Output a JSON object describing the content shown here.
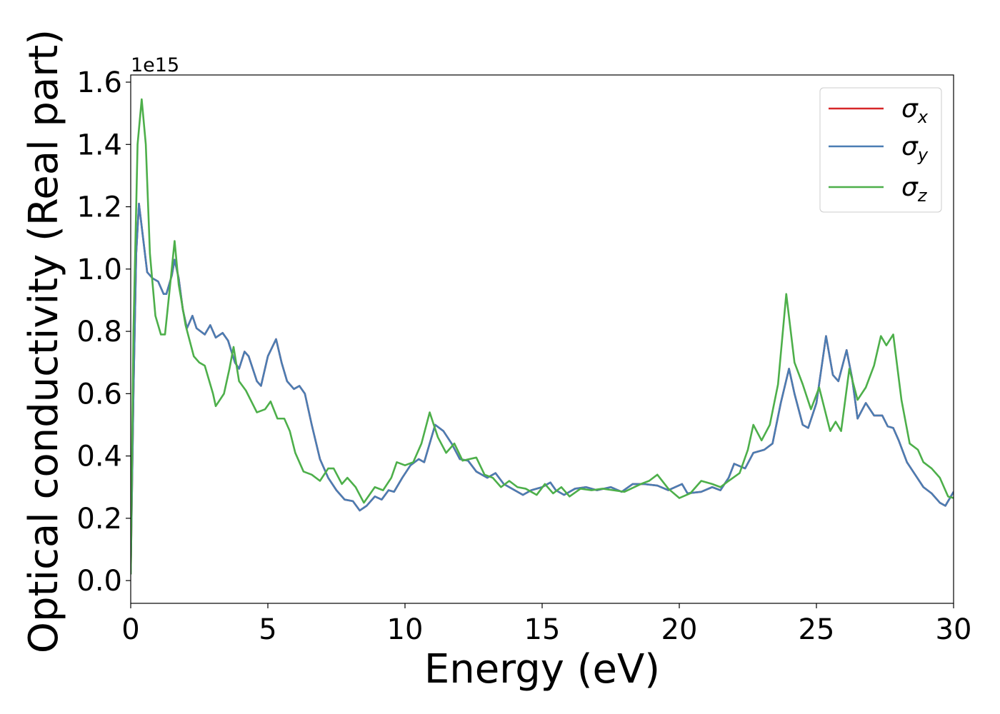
{
  "chart_data": {
    "type": "line",
    "xlabel": "Energy (eV)",
    "ylabel": "Optical conductivity (Real part)",
    "y_offset_label": "1e15",
    "xlim": [
      0,
      30
    ],
    "ylim": [
      -0.073,
      1.623
    ],
    "xticks": [
      0,
      5,
      10,
      15,
      20,
      25,
      30
    ],
    "yticks": [
      {
        "value": 0,
        "label": "0.0"
      },
      0.2,
      0.4,
      0.6,
      0.8,
      {
        "value": 1,
        "label": "1.0"
      },
      1.2,
      1.4,
      1.6
    ],
    "legend": "upper right",
    "series": [
      {
        "name": "σx",
        "color": "#d62728",
        "x": [
          0,
          0.1,
          0.2,
          0.3,
          0.45,
          0.6,
          0.8,
          1.0,
          1.2,
          1.3,
          1.5,
          1.6,
          1.75,
          1.9,
          2.05,
          2.25,
          2.4,
          2.7,
          2.9,
          3.1,
          3.35,
          3.55,
          3.8,
          3.95,
          4.15,
          4.3,
          4.6,
          4.75,
          5.0,
          5.3,
          5.5,
          5.7,
          5.95,
          6.15,
          6.35,
          6.6,
          6.9,
          7.2,
          7.5,
          7.8,
          8.1,
          8.35,
          8.6,
          8.9,
          9.15,
          9.4,
          9.6,
          9.9,
          10.2,
          10.5,
          10.7,
          11.1,
          11.4,
          11.7,
          12.0,
          12.3,
          12.6,
          13.0,
          13.3,
          13.6,
          14.0,
          14.3,
          14.6,
          15.0,
          15.3,
          15.5,
          15.8,
          16.2,
          16.6,
          17.0,
          17.5,
          17.9,
          18.3,
          18.7,
          19.2,
          19.6,
          20.1,
          20.3,
          20.8,
          21.2,
          21.5,
          21.8,
          22.0,
          22.4,
          22.7,
          23.1,
          23.4,
          23.7,
          24.0,
          24.2,
          24.5,
          24.7,
          25.0,
          25.35,
          25.6,
          25.8,
          26.1,
          26.3,
          26.5,
          26.8,
          27.1,
          27.4,
          27.6,
          27.8,
          28.0,
          28.3,
          28.6,
          28.9,
          29.2,
          29.5,
          29.7,
          30.0
        ],
        "values": [
          0.02,
          0.6,
          1.05,
          1.21,
          1.1,
          0.99,
          0.97,
          0.96,
          0.92,
          0.92,
          0.98,
          1.03,
          0.97,
          0.87,
          0.81,
          0.85,
          0.81,
          0.79,
          0.82,
          0.78,
          0.795,
          0.77,
          0.7,
          0.68,
          0.735,
          0.72,
          0.64,
          0.625,
          0.72,
          0.775,
          0.7,
          0.64,
          0.615,
          0.625,
          0.6,
          0.5,
          0.39,
          0.33,
          0.29,
          0.26,
          0.255,
          0.225,
          0.24,
          0.27,
          0.26,
          0.29,
          0.285,
          0.33,
          0.37,
          0.39,
          0.38,
          0.5,
          0.48,
          0.44,
          0.39,
          0.385,
          0.35,
          0.33,
          0.345,
          0.31,
          0.29,
          0.275,
          0.29,
          0.3,
          0.315,
          0.29,
          0.275,
          0.295,
          0.3,
          0.29,
          0.3,
          0.285,
          0.31,
          0.31,
          0.305,
          0.29,
          0.31,
          0.28,
          0.285,
          0.3,
          0.29,
          0.33,
          0.375,
          0.36,
          0.41,
          0.42,
          0.44,
          0.57,
          0.68,
          0.6,
          0.5,
          0.49,
          0.57,
          0.785,
          0.66,
          0.64,
          0.74,
          0.65,
          0.52,
          0.57,
          0.53,
          0.53,
          0.495,
          0.49,
          0.45,
          0.38,
          0.34,
          0.3,
          0.28,
          0.25,
          0.24,
          0.285
        ]
      },
      {
        "name": "σy",
        "color": "#4a7db3",
        "x": [
          0,
          0.1,
          0.2,
          0.3,
          0.45,
          0.6,
          0.8,
          1.0,
          1.2,
          1.3,
          1.5,
          1.6,
          1.75,
          1.9,
          2.05,
          2.25,
          2.4,
          2.7,
          2.9,
          3.1,
          3.35,
          3.55,
          3.8,
          3.95,
          4.15,
          4.3,
          4.6,
          4.75,
          5.0,
          5.3,
          5.5,
          5.7,
          5.95,
          6.15,
          6.35,
          6.6,
          6.9,
          7.2,
          7.5,
          7.8,
          8.1,
          8.35,
          8.6,
          8.9,
          9.15,
          9.4,
          9.6,
          9.9,
          10.2,
          10.5,
          10.7,
          11.1,
          11.4,
          11.7,
          12.0,
          12.3,
          12.6,
          13.0,
          13.3,
          13.6,
          14.0,
          14.3,
          14.6,
          15.0,
          15.3,
          15.5,
          15.8,
          16.2,
          16.6,
          17.0,
          17.5,
          17.9,
          18.3,
          18.7,
          19.2,
          19.6,
          20.1,
          20.3,
          20.8,
          21.2,
          21.5,
          21.8,
          22.0,
          22.4,
          22.7,
          23.1,
          23.4,
          23.7,
          24.0,
          24.2,
          24.5,
          24.7,
          25.0,
          25.35,
          25.6,
          25.8,
          26.1,
          26.3,
          26.5,
          26.8,
          27.1,
          27.4,
          27.6,
          27.8,
          28.0,
          28.3,
          28.6,
          28.9,
          29.2,
          29.5,
          29.7,
          30.0
        ],
        "values": [
          0.02,
          0.6,
          1.05,
          1.21,
          1.1,
          0.99,
          0.97,
          0.96,
          0.92,
          0.92,
          0.98,
          1.03,
          0.97,
          0.87,
          0.81,
          0.85,
          0.81,
          0.79,
          0.82,
          0.78,
          0.795,
          0.77,
          0.7,
          0.68,
          0.735,
          0.72,
          0.64,
          0.625,
          0.72,
          0.775,
          0.7,
          0.64,
          0.615,
          0.625,
          0.6,
          0.5,
          0.39,
          0.33,
          0.29,
          0.26,
          0.255,
          0.225,
          0.24,
          0.27,
          0.26,
          0.29,
          0.285,
          0.33,
          0.37,
          0.39,
          0.38,
          0.5,
          0.48,
          0.44,
          0.39,
          0.385,
          0.35,
          0.33,
          0.345,
          0.31,
          0.29,
          0.275,
          0.29,
          0.3,
          0.315,
          0.29,
          0.275,
          0.295,
          0.3,
          0.29,
          0.3,
          0.285,
          0.31,
          0.31,
          0.305,
          0.29,
          0.31,
          0.28,
          0.285,
          0.3,
          0.29,
          0.33,
          0.375,
          0.36,
          0.41,
          0.42,
          0.44,
          0.57,
          0.68,
          0.6,
          0.5,
          0.49,
          0.57,
          0.785,
          0.66,
          0.64,
          0.74,
          0.65,
          0.52,
          0.57,
          0.53,
          0.53,
          0.495,
          0.49,
          0.45,
          0.38,
          0.34,
          0.3,
          0.28,
          0.25,
          0.24,
          0.285
        ]
      },
      {
        "name": "σz",
        "color": "#4daf4a",
        "x": [
          0,
          0.1,
          0.25,
          0.4,
          0.55,
          0.7,
          0.9,
          1.1,
          1.25,
          1.45,
          1.6,
          1.75,
          2.0,
          2.3,
          2.5,
          2.7,
          3.0,
          3.1,
          3.4,
          3.6,
          3.75,
          3.95,
          4.2,
          4.6,
          4.9,
          5.1,
          5.35,
          5.6,
          5.8,
          6.0,
          6.3,
          6.6,
          6.9,
          7.2,
          7.4,
          7.7,
          7.9,
          8.2,
          8.5,
          8.9,
          9.2,
          9.5,
          9.7,
          10.0,
          10.3,
          10.6,
          10.9,
          11.2,
          11.5,
          11.8,
          12.1,
          12.6,
          12.9,
          13.2,
          13.5,
          13.8,
          14.1,
          14.4,
          14.8,
          15.1,
          15.4,
          15.7,
          16.0,
          16.4,
          16.8,
          17.2,
          17.6,
          18.0,
          18.6,
          18.9,
          19.2,
          19.6,
          20.0,
          20.4,
          20.8,
          21.2,
          21.5,
          21.8,
          22.2,
          22.5,
          22.7,
          23.0,
          23.3,
          23.6,
          23.9,
          24.2,
          24.5,
          24.8,
          25.1,
          25.3,
          25.5,
          25.7,
          25.9,
          26.2,
          26.5,
          26.8,
          27.1,
          27.35,
          27.55,
          27.8,
          28.1,
          28.4,
          28.7,
          28.9,
          29.2,
          29.5,
          29.8,
          30.0
        ],
        "values": [
          0.02,
          0.8,
          1.4,
          1.545,
          1.4,
          1.05,
          0.85,
          0.79,
          0.79,
          0.96,
          1.09,
          0.95,
          0.82,
          0.72,
          0.7,
          0.69,
          0.6,
          0.56,
          0.6,
          0.68,
          0.75,
          0.64,
          0.61,
          0.54,
          0.55,
          0.575,
          0.52,
          0.52,
          0.48,
          0.41,
          0.35,
          0.34,
          0.32,
          0.36,
          0.36,
          0.31,
          0.33,
          0.3,
          0.25,
          0.3,
          0.29,
          0.33,
          0.38,
          0.37,
          0.38,
          0.44,
          0.54,
          0.46,
          0.41,
          0.44,
          0.385,
          0.395,
          0.34,
          0.33,
          0.3,
          0.32,
          0.3,
          0.295,
          0.275,
          0.31,
          0.28,
          0.3,
          0.27,
          0.295,
          0.29,
          0.295,
          0.29,
          0.285,
          0.31,
          0.32,
          0.34,
          0.295,
          0.265,
          0.28,
          0.32,
          0.31,
          0.3,
          0.32,
          0.345,
          0.42,
          0.5,
          0.45,
          0.5,
          0.63,
          0.92,
          0.7,
          0.63,
          0.55,
          0.62,
          0.55,
          0.48,
          0.51,
          0.48,
          0.68,
          0.58,
          0.62,
          0.69,
          0.785,
          0.755,
          0.79,
          0.58,
          0.44,
          0.42,
          0.38,
          0.36,
          0.33,
          0.27,
          0.265
        ]
      }
    ]
  }
}
